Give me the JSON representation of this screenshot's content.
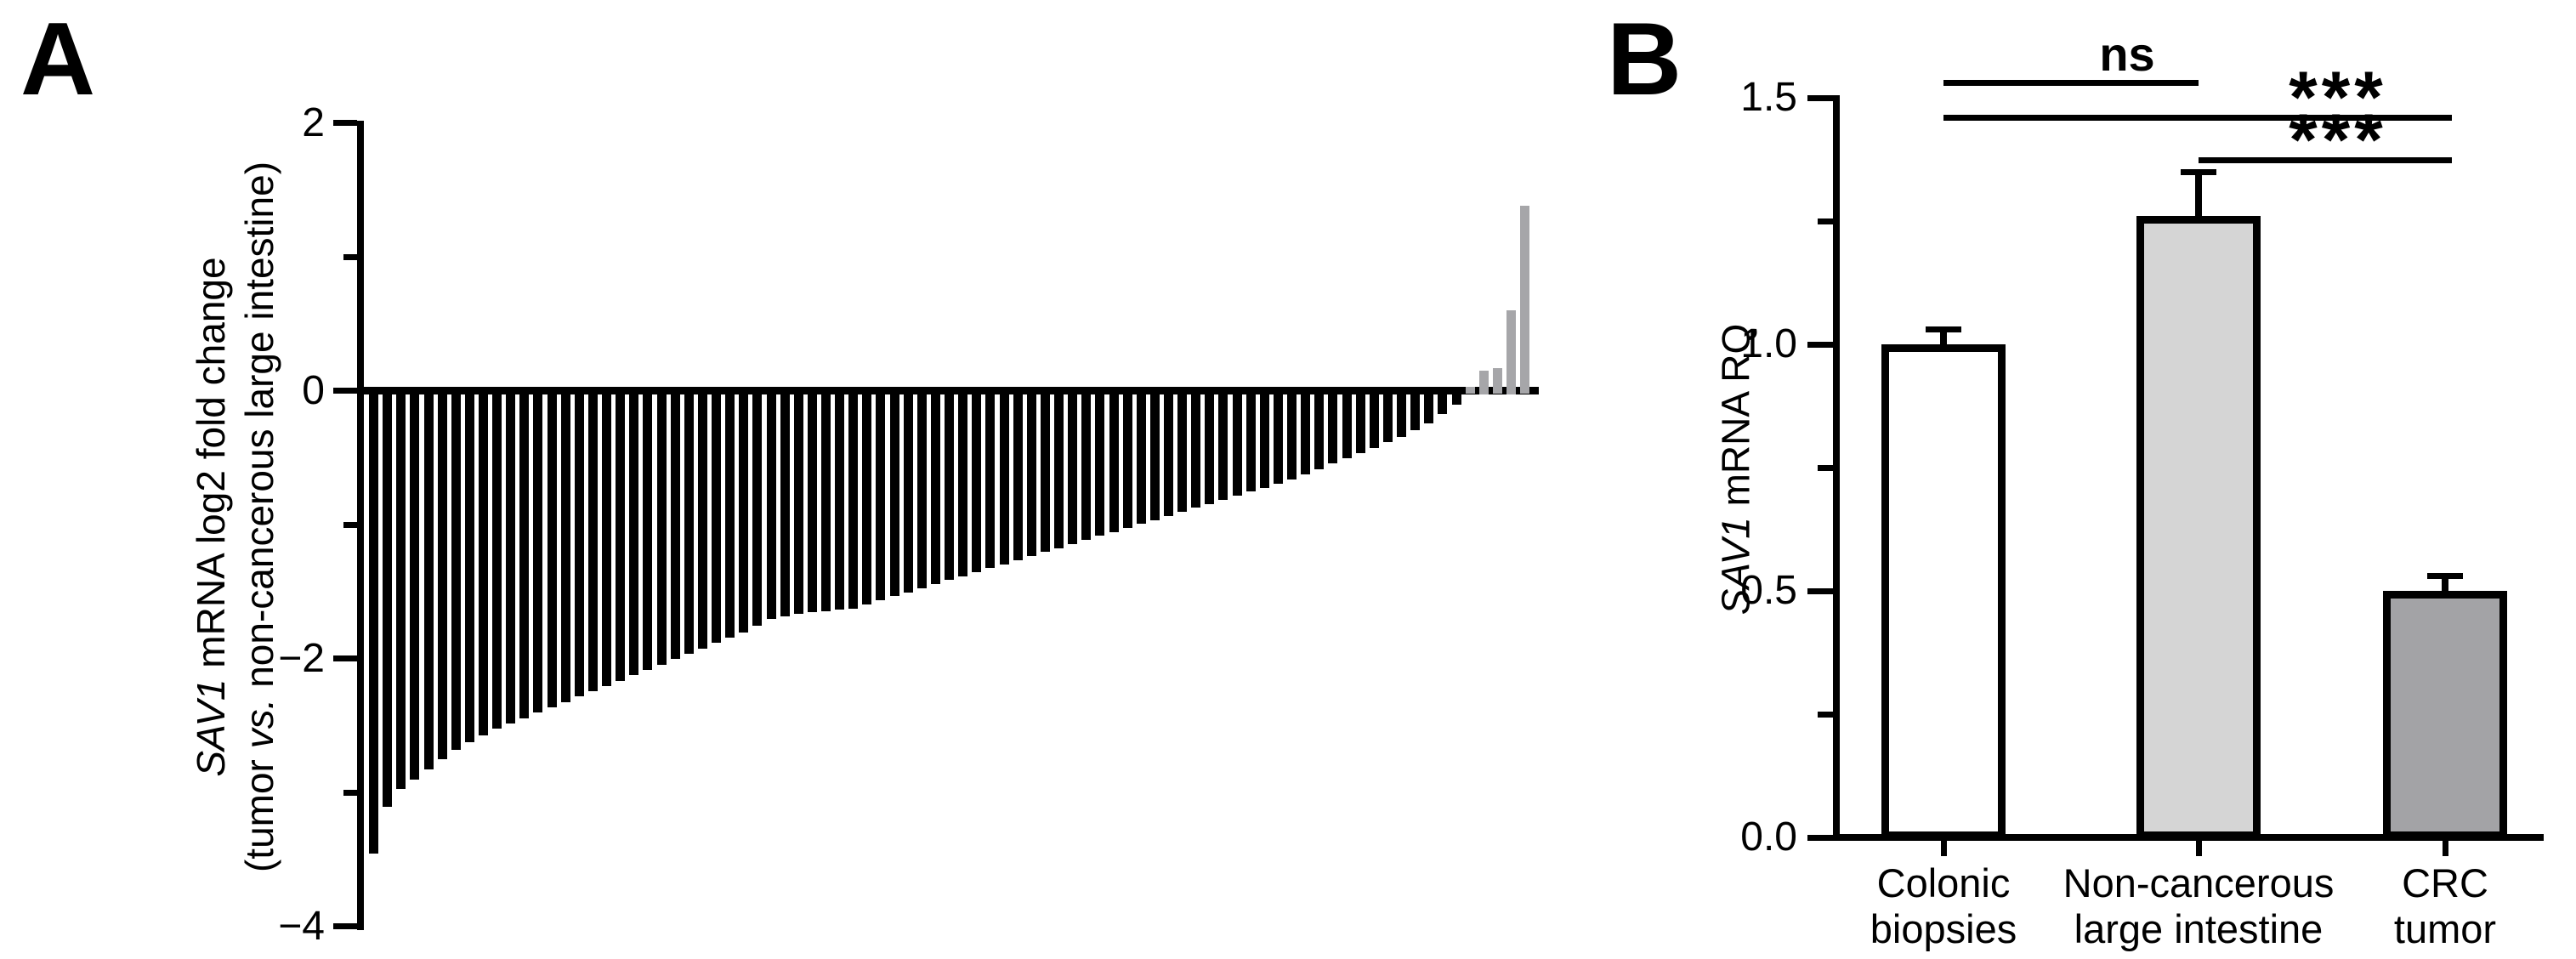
{
  "panel_a": {
    "letter": "A",
    "ylabel": {
      "gene": "SAV1",
      "line1_rest": " mRNA log2 fold change",
      "line2_pre": "(tumor ",
      "line2_vs": "vs.",
      "line2_post": " non-cancerous large intestine)"
    },
    "ytick_labels": [
      "2",
      "0",
      "−2",
      "−4"
    ]
  },
  "panel_b": {
    "letter": "B",
    "ylabel": {
      "gene": "SAV1",
      "rest": " mRNA RQ"
    },
    "ytick_labels": [
      "1.5",
      "1.0",
      "0.5",
      "0.0"
    ],
    "categories_lines": [
      [
        "Colonic",
        "biopsies"
      ],
      [
        "Non-cancerous",
        "large intestine"
      ],
      [
        "CRC",
        "tumor"
      ]
    ],
    "significance": [
      {
        "label": "ns"
      },
      {
        "label": "***"
      },
      {
        "label": "***"
      }
    ]
  },
  "colors": {
    "black": "#000000",
    "waterfall_positive_gray": "#a6a6a9",
    "b_bar_fills": [
      "#ffffff",
      "#d5d5d5",
      "#a3a3a6"
    ]
  },
  "chart_data": [
    {
      "type": "bar",
      "panel": "A",
      "subtype": "waterfall",
      "title": "",
      "ylabel": "SAV1 mRNA log2 fold change (tumor vs. non-cancerous large intestine)",
      "xlabel": "",
      "ylim": [
        -4,
        2
      ],
      "yticks": [
        2,
        0,
        -2,
        -4
      ],
      "yticks_minor": [
        1,
        -1,
        -3
      ],
      "grid": false,
      "n_samples": 85,
      "n_negative": 80,
      "n_positive": 5,
      "values": [
        -3.43,
        -3.08,
        -2.95,
        -2.88,
        -2.8,
        -2.73,
        -2.66,
        -2.6,
        -2.55,
        -2.5,
        -2.46,
        -2.42,
        -2.38,
        -2.34,
        -2.3,
        -2.26,
        -2.22,
        -2.18,
        -2.14,
        -2.1,
        -2.06,
        -2.02,
        -1.98,
        -1.94,
        -1.9,
        -1.86,
        -1.82,
        -1.78,
        -1.73,
        -1.68,
        -1.66,
        -1.64,
        -1.63,
        -1.62,
        -1.61,
        -1.6,
        -1.57,
        -1.54,
        -1.51,
        -1.48,
        -1.45,
        -1.42,
        -1.39,
        -1.36,
        -1.33,
        -1.3,
        -1.27,
        -1.24,
        -1.21,
        -1.18,
        -1.15,
        -1.12,
        -1.09,
        -1.06,
        -1.03,
        -1.0,
        -0.97,
        -0.94,
        -0.91,
        -0.88,
        -0.85,
        -0.82,
        -0.79,
        -0.76,
        -0.73,
        -0.7,
        -0.67,
        -0.64,
        -0.6,
        -0.56,
        -0.52,
        -0.48,
        -0.44,
        -0.4,
        -0.36,
        -0.32,
        -0.27,
        -0.22,
        -0.15,
        -0.08,
        0.03,
        0.15,
        0.17,
        0.6,
        1.38
      ]
    },
    {
      "type": "bar",
      "panel": "B",
      "title": "",
      "ylabel": "SAV1 mRNA RQ",
      "xlabel": "",
      "ylim": [
        0,
        1.5
      ],
      "yticks": [
        1.5,
        1.0,
        0.5,
        0.0
      ],
      "yticks_minor": [
        1.25,
        0.75,
        0.25
      ],
      "grid": false,
      "categories": [
        "Colonic biopsies",
        "Non-cancerous large intestine",
        "CRC tumor"
      ],
      "values": [
        1.0,
        1.26,
        0.5
      ],
      "errors_plus": [
        0.03,
        0.09,
        0.03
      ],
      "significance": [
        {
          "between": [
            "Colonic biopsies",
            "Non-cancerous large intestine"
          ],
          "label": "ns"
        },
        {
          "between": [
            "Colonic biopsies",
            "CRC tumor"
          ],
          "label": "***"
        },
        {
          "between": [
            "Non-cancerous large intestine",
            "CRC tumor"
          ],
          "label": "***"
        }
      ]
    }
  ]
}
